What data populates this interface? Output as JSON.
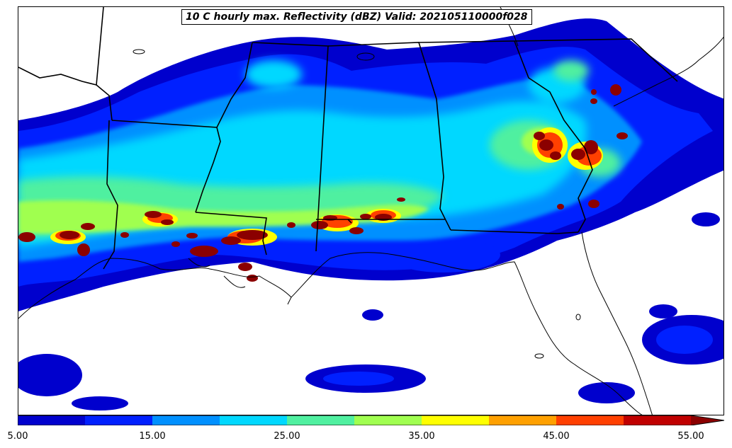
{
  "title": "10 C hourly max. Reflectivity (dBZ) Valid: 202105110000f028",
  "colorbar": {
    "levels": [
      5,
      10,
      15,
      20,
      25,
      30,
      35,
      40,
      45,
      50,
      55
    ],
    "colors": [
      "#0000cd",
      "#0020ff",
      "#0090ff",
      "#00d8ff",
      "#50f0a0",
      "#a0ff50",
      "#ffff00",
      "#ffa000",
      "#ff4000",
      "#c00000"
    ],
    "extend_color": "#8b0000",
    "tick_labels": [
      "5.00",
      "15.00",
      "25.00",
      "35.00",
      "45.00",
      "55.00"
    ]
  },
  "map": {
    "region": "Southeastern United States",
    "field": "reflectivity",
    "units": "dBZ"
  }
}
